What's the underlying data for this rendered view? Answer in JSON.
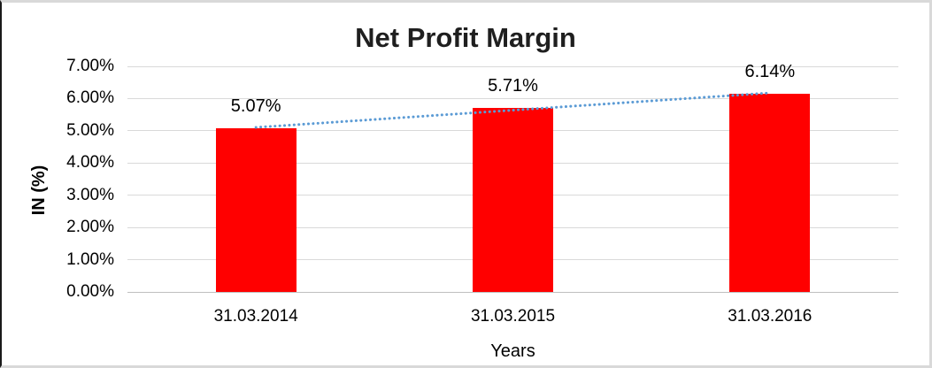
{
  "chart_data": {
    "type": "bar",
    "title": "Net Profit Margin",
    "xlabel": "Years",
    "ylabel": "IN (%)",
    "categories": [
      "31.03.2014",
      "31.03.2015",
      "31.03.2016"
    ],
    "values": [
      5.07,
      5.71,
      6.14
    ],
    "data_labels": [
      "5.07%",
      "5.71%",
      "6.14%"
    ],
    "y_ticks": [
      "7.00%",
      "6.00%",
      "5.00%",
      "4.00%",
      "3.00%",
      "2.00%",
      "1.00%",
      "0.00%"
    ],
    "ylim": [
      0,
      7
    ],
    "grid": true,
    "legend_position": "none",
    "bar_color": "#FF0000",
    "trendline": {
      "type": "linear",
      "style": "dotted",
      "color": "#5B9BD5"
    }
  }
}
